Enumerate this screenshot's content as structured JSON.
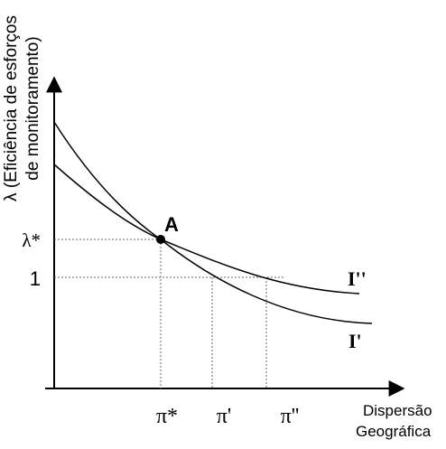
{
  "y_axis": {
    "title_line1": "λ (Eficiência de esforços",
    "title_line2": "de monitoramento)",
    "tick_lambda_star": "λ*",
    "tick_one": "1"
  },
  "x_axis": {
    "title_line1": "Dispersão",
    "title_line2": "Geográfica",
    "tick_pi_star": "π*",
    "tick_pi_prime": "π'",
    "tick_pi_double_prime": "π''"
  },
  "point": {
    "label": "A"
  },
  "curves": {
    "flatter_label": "I''",
    "steeper_label": "I'"
  }
}
